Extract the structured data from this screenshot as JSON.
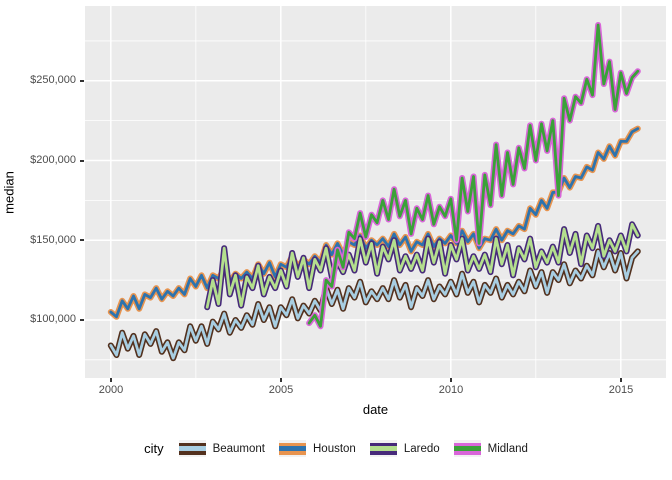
{
  "chart_data": {
    "type": "line",
    "title": "",
    "xlabel": "date",
    "ylabel": "median",
    "grid": "major-minor-white-on-gray",
    "panel_background": "#EBEBEB",
    "gridline_color": "#FFFFFF",
    "axis_text_color": "#4D4D4D",
    "x_range": [
      1999.24,
      2016.33
    ],
    "y_range": [
      63600,
      296900
    ],
    "x_axis": {
      "ticks": [
        2000,
        2005,
        2010,
        2015
      ],
      "tick_labels": [
        "2000",
        "2005",
        "2010",
        "2015"
      ],
      "minor_ticks": [
        2002.5,
        2007.5,
        2012.5
      ]
    },
    "y_axis": {
      "ticks": [
        100000,
        150000,
        200000,
        250000
      ],
      "tick_labels": [
        "$100,000",
        "$150,000",
        "$200,000",
        "$250,000"
      ],
      "minor_ticks": [
        75000,
        125000,
        175000,
        225000,
        275000
      ]
    },
    "legend_title": "city",
    "legend_position": "bottom",
    "series_note": "monthly median home price, values in thousands USD, x_step = 1/6 year (bi-monthly estimates read from plot)",
    "series": [
      {
        "name": "Beaumont",
        "outer_color": "#53311E",
        "inner_color": "#A8CEE2",
        "x_start": 2000.0,
        "x_step": 0.166667,
        "values_k": [
          84,
          78,
          92,
          82,
          90,
          78,
          91,
          85,
          93,
          80,
          86,
          76,
          86,
          81,
          96,
          87,
          96,
          85,
          99,
          94,
          104,
          92,
          100,
          95,
          103,
          97,
          110,
          100,
          108,
          96,
          108,
          103,
          113,
          101,
          109,
          104,
          112,
          106,
          120,
          110,
          119,
          107,
          120,
          114,
          124,
          111,
          118,
          113,
          120,
          113,
          125,
          114,
          122,
          108,
          120,
          115,
          125,
          113,
          121,
          116,
          124,
          116,
          129,
          117,
          124,
          111,
          122,
          117,
          126,
          114,
          122,
          116,
          124,
          118,
          131,
          121,
          130,
          117,
          130,
          125,
          135,
          123,
          131,
          126,
          134,
          128,
          143,
          133,
          142,
          131,
          142,
          126,
          139,
          143
        ]
      },
      {
        "name": "Houston",
        "outer_color": "#E8944F",
        "inner_color": "#2D73AE",
        "x_start": 2000.0,
        "x_step": 0.166667,
        "values_k": [
          105,
          102,
          112,
          107,
          115,
          107,
          116,
          114,
          120,
          113,
          118,
          115,
          120,
          116,
          126,
          121,
          128,
          120,
          128,
          126,
          132,
          124,
          129,
          126,
          130,
          126,
          135,
          129,
          136,
          127,
          135,
          133,
          140,
          133,
          138,
          135,
          140,
          136,
          147,
          141,
          148,
          141,
          149,
          147,
          153,
          145,
          150,
          147,
          151,
          146,
          154,
          147,
          152,
          143,
          149,
          147,
          154,
          146,
          151,
          148,
          153,
          148,
          156,
          149,
          154,
          145,
          151,
          150,
          157,
          150,
          156,
          154,
          159,
          157,
          170,
          166,
          175,
          170,
          180,
          180,
          189,
          183,
          190,
          189,
          196,
          194,
          205,
          201,
          209,
          203,
          212,
          212,
          218,
          220
        ]
      },
      {
        "name": "Laredo",
        "outer_color": "#472A7A",
        "inner_color": "#B4DF8E",
        "x_start": 2002.8333,
        "x_step": 0.166667,
        "values_k": [
          108,
          125,
          110,
          145,
          116,
          128,
          109,
          127,
          120,
          134,
          116,
          127,
          120,
          131,
          121,
          142,
          127,
          139,
          120,
          138,
          131,
          145,
          127,
          137,
          130,
          141,
          131,
          151,
          136,
          148,
          129,
          146,
          138,
          150,
          131,
          140,
          132,
          141,
          131,
          151,
          136,
          149,
          129,
          147,
          138,
          151,
          131,
          140,
          132,
          141,
          130,
          151,
          135,
          147,
          128,
          145,
          138,
          151,
          133,
          143,
          136,
          146,
          136,
          157,
          142,
          154,
          135,
          153,
          145,
          159,
          140,
          150,
          143,
          153,
          143,
          160,
          153
        ]
      },
      {
        "name": "Midland",
        "outer_color": "#D966D9",
        "inner_color": "#3AA238",
        "x_start": 2005.8333,
        "x_step": 0.166667,
        "values_k": [
          98,
          103,
          96,
          125,
          121,
          144,
          133,
          155,
          151,
          167,
          152,
          166,
          161,
          175,
          163,
          182,
          165,
          175,
          154,
          170,
          163,
          178,
          160,
          171,
          165,
          176,
          150,
          189,
          168,
          190,
          148,
          191,
          172,
          210,
          178,
          205,
          185,
          208,
          195,
          222,
          200,
          223,
          206,
          225,
          178,
          239,
          225,
          240,
          236,
          251,
          241,
          285,
          248,
          262,
          232,
          255,
          242,
          252,
          256
        ]
      }
    ]
  }
}
